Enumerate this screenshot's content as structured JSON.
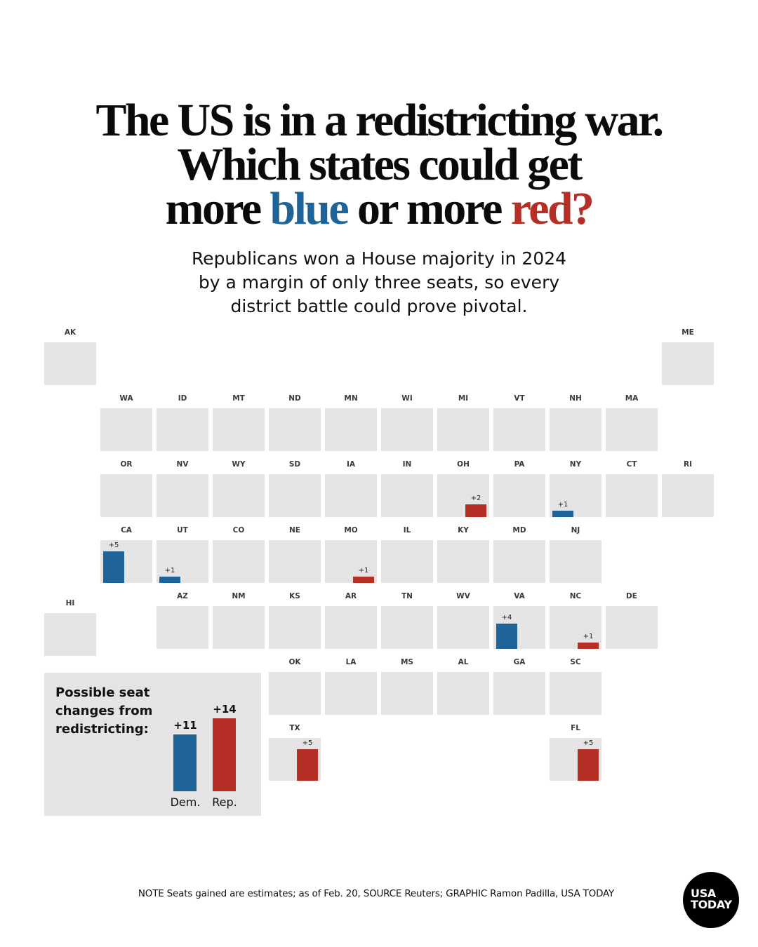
{
  "headline": {
    "line1": "The US is in a redistricting war.",
    "line2": "Which states could get",
    "line3_prefix": "more ",
    "line3_blue": "blue",
    "line3_middle": " or more ",
    "line3_red": "red?"
  },
  "dek": {
    "line1": "Republicans won a House majority in 2024",
    "line2": "by a margin of only three seats, so every",
    "line3": "district battle could prove pivotal."
  },
  "colors": {
    "dem": "#1f6499",
    "rep": "#b52f27",
    "tile": "#e4e4e4"
  },
  "chart_data": {
    "type": "table",
    "title": "Possible seat changes from redistricting",
    "description": "Tile-grid map of U.S. states; bars show estimated House seats gained by party through redistricting",
    "states": [
      {
        "abbr": "AK",
        "row": 0,
        "col": 0,
        "party": null,
        "seats": 0
      },
      {
        "abbr": "ME",
        "row": 0,
        "col": 11,
        "party": null,
        "seats": 0
      },
      {
        "abbr": "WA",
        "row": 1,
        "col": 1,
        "party": null,
        "seats": 0
      },
      {
        "abbr": "ID",
        "row": 1,
        "col": 2,
        "party": null,
        "seats": 0
      },
      {
        "abbr": "MT",
        "row": 1,
        "col": 3,
        "party": null,
        "seats": 0
      },
      {
        "abbr": "ND",
        "row": 1,
        "col": 4,
        "party": null,
        "seats": 0
      },
      {
        "abbr": "MN",
        "row": 1,
        "col": 5,
        "party": null,
        "seats": 0
      },
      {
        "abbr": "WI",
        "row": 1,
        "col": 6,
        "party": null,
        "seats": 0
      },
      {
        "abbr": "MI",
        "row": 1,
        "col": 7,
        "party": null,
        "seats": 0
      },
      {
        "abbr": "VT",
        "row": 1,
        "col": 8,
        "party": null,
        "seats": 0
      },
      {
        "abbr": "NH",
        "row": 1,
        "col": 9,
        "party": null,
        "seats": 0
      },
      {
        "abbr": "MA",
        "row": 1,
        "col": 10,
        "party": null,
        "seats": 0
      },
      {
        "abbr": "OR",
        "row": 2,
        "col": 1,
        "party": null,
        "seats": 0
      },
      {
        "abbr": "NV",
        "row": 2,
        "col": 2,
        "party": null,
        "seats": 0
      },
      {
        "abbr": "WY",
        "row": 2,
        "col": 3,
        "party": null,
        "seats": 0
      },
      {
        "abbr": "SD",
        "row": 2,
        "col": 4,
        "party": null,
        "seats": 0
      },
      {
        "abbr": "IA",
        "row": 2,
        "col": 5,
        "party": null,
        "seats": 0
      },
      {
        "abbr": "IN",
        "row": 2,
        "col": 6,
        "party": null,
        "seats": 0
      },
      {
        "abbr": "OH",
        "row": 2,
        "col": 7,
        "party": "rep",
        "seats": 2,
        "label": "+2"
      },
      {
        "abbr": "PA",
        "row": 2,
        "col": 8,
        "party": null,
        "seats": 0
      },
      {
        "abbr": "NY",
        "row": 2,
        "col": 9,
        "party": "dem",
        "seats": 1,
        "label": "+1"
      },
      {
        "abbr": "CT",
        "row": 2,
        "col": 10,
        "party": null,
        "seats": 0
      },
      {
        "abbr": "RI",
        "row": 2,
        "col": 11,
        "party": null,
        "seats": 0
      },
      {
        "abbr": "CA",
        "row": 3,
        "col": 1,
        "party": "dem",
        "seats": 5,
        "label": "+5"
      },
      {
        "abbr": "UT",
        "row": 3,
        "col": 2,
        "party": "dem",
        "seats": 1,
        "label": "+1"
      },
      {
        "abbr": "CO",
        "row": 3,
        "col": 3,
        "party": null,
        "seats": 0
      },
      {
        "abbr": "NE",
        "row": 3,
        "col": 4,
        "party": null,
        "seats": 0
      },
      {
        "abbr": "MO",
        "row": 3,
        "col": 5,
        "party": "rep",
        "seats": 1,
        "label": "+1"
      },
      {
        "abbr": "IL",
        "row": 3,
        "col": 6,
        "party": null,
        "seats": 0
      },
      {
        "abbr": "KY",
        "row": 3,
        "col": 7,
        "party": null,
        "seats": 0
      },
      {
        "abbr": "MD",
        "row": 3,
        "col": 8,
        "party": null,
        "seats": 0
      },
      {
        "abbr": "NJ",
        "row": 3,
        "col": 9,
        "party": null,
        "seats": 0
      },
      {
        "abbr": "HI",
        "row": 4.1,
        "col": 0,
        "party": null,
        "seats": 0
      },
      {
        "abbr": "AZ",
        "row": 4,
        "col": 2,
        "party": null,
        "seats": 0
      },
      {
        "abbr": "NM",
        "row": 4,
        "col": 3,
        "party": null,
        "seats": 0
      },
      {
        "abbr": "KS",
        "row": 4,
        "col": 4,
        "party": null,
        "seats": 0
      },
      {
        "abbr": "AR",
        "row": 4,
        "col": 5,
        "party": null,
        "seats": 0
      },
      {
        "abbr": "TN",
        "row": 4,
        "col": 6,
        "party": null,
        "seats": 0
      },
      {
        "abbr": "WV",
        "row": 4,
        "col": 7,
        "party": null,
        "seats": 0
      },
      {
        "abbr": "VA",
        "row": 4,
        "col": 8,
        "party": "dem",
        "seats": 4,
        "label": "+4"
      },
      {
        "abbr": "NC",
        "row": 4,
        "col": 9,
        "party": "rep",
        "seats": 1,
        "label": "+1"
      },
      {
        "abbr": "DE",
        "row": 4,
        "col": 10,
        "party": null,
        "seats": 0
      },
      {
        "abbr": "OK",
        "row": 5,
        "col": 4,
        "party": null,
        "seats": 0
      },
      {
        "abbr": "LA",
        "row": 5,
        "col": 5,
        "party": null,
        "seats": 0
      },
      {
        "abbr": "MS",
        "row": 5,
        "col": 6,
        "party": null,
        "seats": 0
      },
      {
        "abbr": "AL",
        "row": 5,
        "col": 7,
        "party": null,
        "seats": 0
      },
      {
        "abbr": "GA",
        "row": 5,
        "col": 8,
        "party": null,
        "seats": 0
      },
      {
        "abbr": "SC",
        "row": 5,
        "col": 9,
        "party": null,
        "seats": 0
      },
      {
        "abbr": "TX",
        "row": 6,
        "col": 4,
        "party": "rep",
        "seats": 5,
        "label": "+5"
      },
      {
        "abbr": "FL",
        "row": 6,
        "col": 9,
        "party": "rep",
        "seats": 5,
        "label": "+5"
      }
    ],
    "totals": {
      "title": "Possible seat changes from redistricting:",
      "categories": [
        "Dem.",
        "Rep."
      ],
      "values": [
        11,
        14
      ],
      "labels": [
        "+11",
        "+14"
      ]
    }
  },
  "footnote": "NOTE Seats gained are estimates; as of Feb. 20, SOURCE Reuters; GRAPHIC Ramon Padilla, USA TODAY",
  "logo": {
    "line1": "USA",
    "line2": "TODAY"
  }
}
